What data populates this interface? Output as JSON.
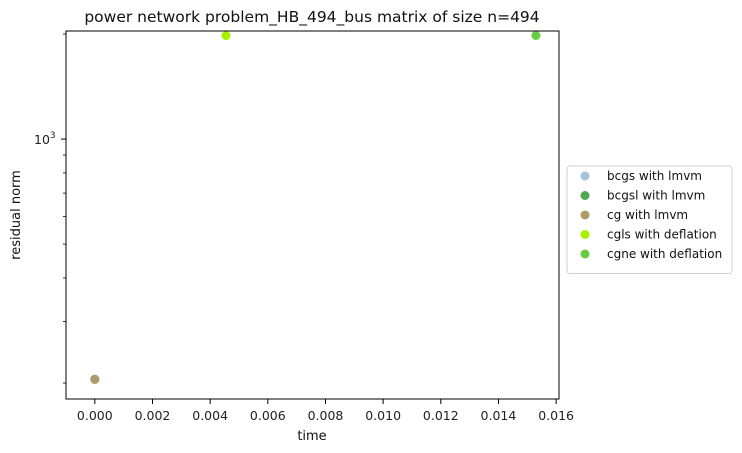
{
  "chart_data": {
    "type": "scatter",
    "title": "power network problem_HB_494_bus matrix of size n=494",
    "xlabel": "time",
    "ylabel": "residual norm",
    "xscale": "linear",
    "yscale": "log",
    "xlim": [
      -0.001,
      0.0161
    ],
    "ylim": [
      180,
      2040
    ],
    "xticks": [
      {
        "value": 0.0,
        "label": "0.000"
      },
      {
        "value": 0.002,
        "label": "0.002"
      },
      {
        "value": 0.004,
        "label": "0.004"
      },
      {
        "value": 0.006,
        "label": "0.006"
      },
      {
        "value": 0.008,
        "label": "0.008"
      },
      {
        "value": 0.01,
        "label": "0.010"
      },
      {
        "value": 0.012,
        "label": "0.012"
      },
      {
        "value": 0.014,
        "label": "0.014"
      },
      {
        "value": 0.016,
        "label": "0.016"
      }
    ],
    "yticks": [
      {
        "value": 1000,
        "label_base": "10",
        "label_exp": "3"
      }
    ],
    "grid": false,
    "legend_position": "center-right outside",
    "series": [
      {
        "name": "bcgs with lmvm",
        "color": "#a8c0d8",
        "points": [
          [
            0.0,
            205
          ]
        ]
      },
      {
        "name": "bcgsl with lmvm",
        "color": "#4fa84f",
        "points": [
          [
            0.0,
            205
          ]
        ]
      },
      {
        "name": "cg with lmvm",
        "color": "#b09a6a",
        "points": [
          [
            0.0,
            205
          ]
        ]
      },
      {
        "name": "cgls with deflation",
        "color": "#a6f000",
        "points": [
          [
            0.00455,
            1980
          ]
        ]
      },
      {
        "name": "cgne with deflation",
        "color": "#66cc44",
        "points": [
          [
            0.0153,
            1980
          ]
        ]
      }
    ]
  }
}
